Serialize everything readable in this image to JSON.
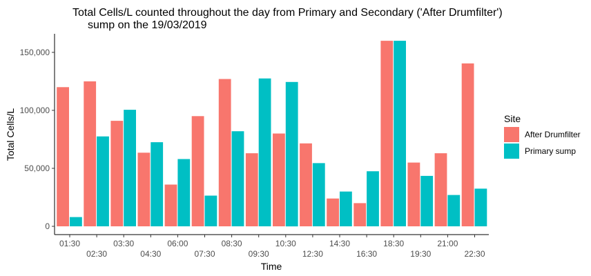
{
  "chart_data": {
    "type": "bar",
    "title_line1": "Total Cells/L counted throughout the day from Primary and Secondary ('After Drumfilter')",
    "title_line2": "sump on the 19/03/2019",
    "xlabel": "Time",
    "ylabel": "Total Cells/L",
    "ylim": [
      0,
      166000
    ],
    "yticks": [
      0,
      50000,
      100000,
      150000
    ],
    "ytick_labels": [
      "0",
      "50,000",
      "100,000",
      "150,000"
    ],
    "categories": [
      "01:30",
      "02:30",
      "03:30",
      "04:30",
      "06:00",
      "07:30",
      "08:30",
      "09:30",
      "10:30",
      "12:30",
      "14:30",
      "16:30",
      "18:30",
      "19:30",
      "21:00",
      "22:30"
    ],
    "series": [
      {
        "name": "After Drumfilter",
        "color": "#F8766D",
        "values": [
          120000,
          125000,
          91000,
          63500,
          36000,
          95000,
          127000,
          63000,
          80000,
          71500,
          24000,
          20000,
          160000,
          55000,
          63000,
          140500
        ]
      },
      {
        "name": "Primary sump",
        "color": "#00BFC4",
        "values": [
          8000,
          77500,
          100500,
          72500,
          58000,
          26500,
          82000,
          127500,
          124500,
          54500,
          30000,
          47500,
          160000,
          43500,
          27000,
          32500
        ]
      }
    ],
    "legend": {
      "title": "Site",
      "position": "right"
    },
    "grid": false
  }
}
